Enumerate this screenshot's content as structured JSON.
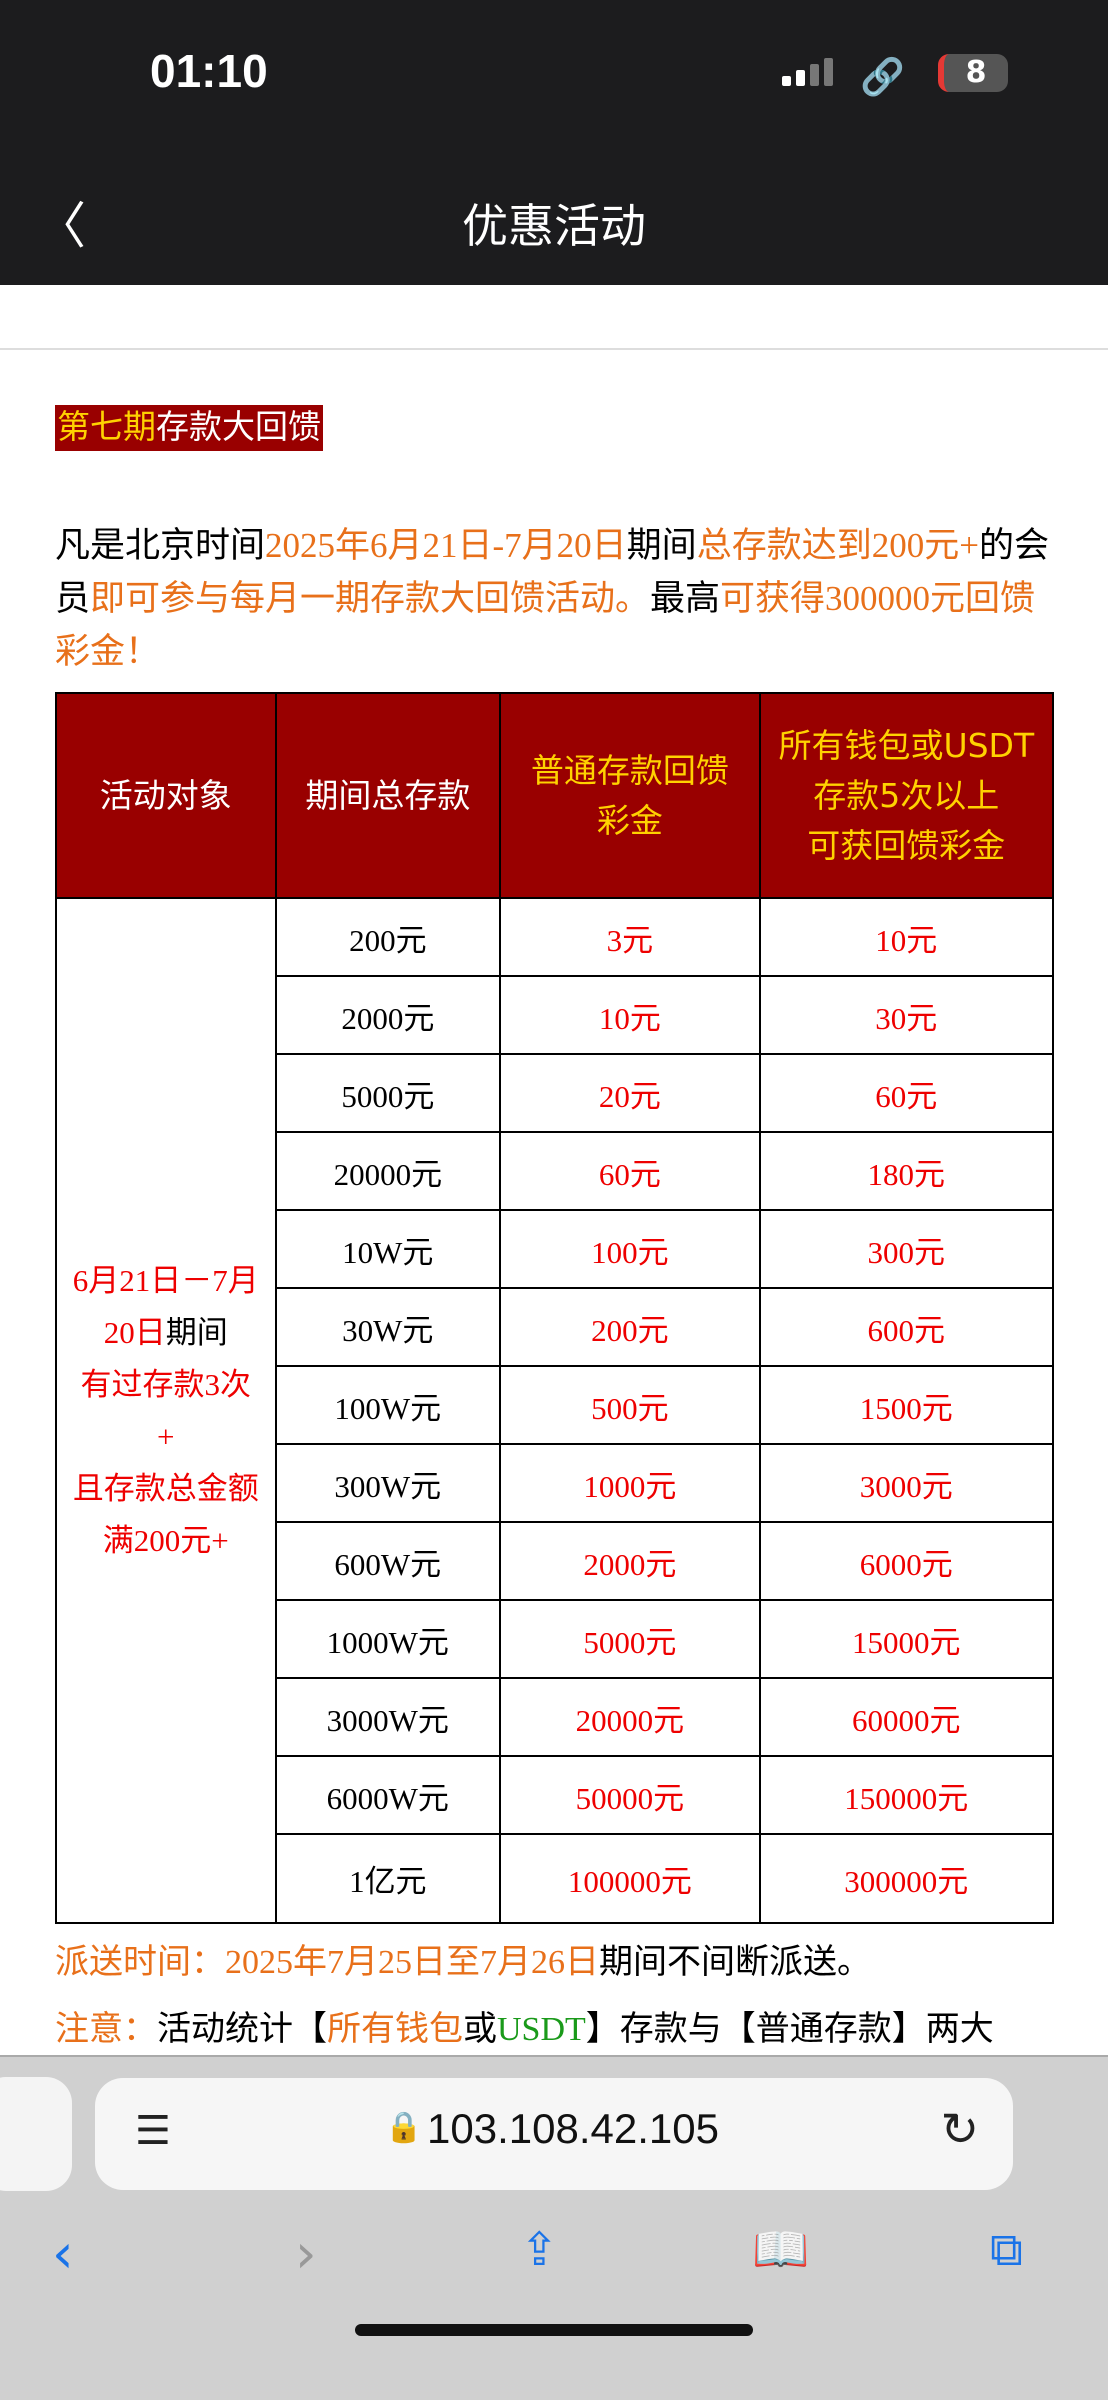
{
  "status_bar": {
    "time": "01:10",
    "battery": "8"
  },
  "nav": {
    "title": "优惠活动"
  },
  "heading": {
    "highlight": "第七期",
    "rest": "存款大回馈"
  },
  "intro": {
    "p1": "凡是北京时间",
    "p2": "2025年6月21日-7月20日",
    "p3": "期间",
    "p4": "总存款达到200元+",
    "p5": "的会员",
    "p6": "即可参与每月一期存款大回馈活动。",
    "p7": "最高",
    "p8": "可获得300000元回馈彩金！"
  },
  "table": {
    "headers": [
      "活动对象",
      "期间总存款",
      "普通存款回馈彩金",
      "所有钱包或USDT存款5次以上可获回馈彩金"
    ],
    "header_lines": {
      "h3a": "普通存款回馈",
      "h3b": "彩金",
      "h4a": "所有钱包或USDT",
      "h4b": "存款5次以上",
      "h4c": "可获回馈彩金"
    },
    "condition": {
      "a": "6月21日－7月20日",
      "b": "期间",
      "c": "有过存款3次",
      "d": "+",
      "e": "且存款总金额满200元+"
    },
    "rows": [
      [
        "200元",
        "3元",
        "10元"
      ],
      [
        "2000元",
        "10元",
        "30元"
      ],
      [
        "5000元",
        "20元",
        "60元"
      ],
      [
        "20000元",
        "60元",
        "180元"
      ],
      [
        "10W元",
        "100元",
        "300元"
      ],
      [
        "30W元",
        "200元",
        "600元"
      ],
      [
        "100W元",
        "500元",
        "1500元"
      ],
      [
        "300W元",
        "1000元",
        "3000元"
      ],
      [
        "600W元",
        "2000元",
        "6000元"
      ],
      [
        "1000W元",
        "5000元",
        "15000元"
      ],
      [
        "3000W元",
        "20000元",
        "60000元"
      ],
      [
        "6000W元",
        "50000元",
        "150000元"
      ],
      [
        "1亿元",
        "100000元",
        "300000元"
      ]
    ]
  },
  "shipping": {
    "label": "派送时间：",
    "dates": "2025年7月25日至7月26日",
    "rest": "期间不间断派送。"
  },
  "note": {
    "label": "注意：",
    "a": "活动统计【",
    "b": "所有钱包",
    "c": "或",
    "d": "USDT",
    "e": "】存款与【普通存款】两大类，仅派送最高彩金门槛！"
  },
  "browser": {
    "url": "103.108.42.105"
  }
}
